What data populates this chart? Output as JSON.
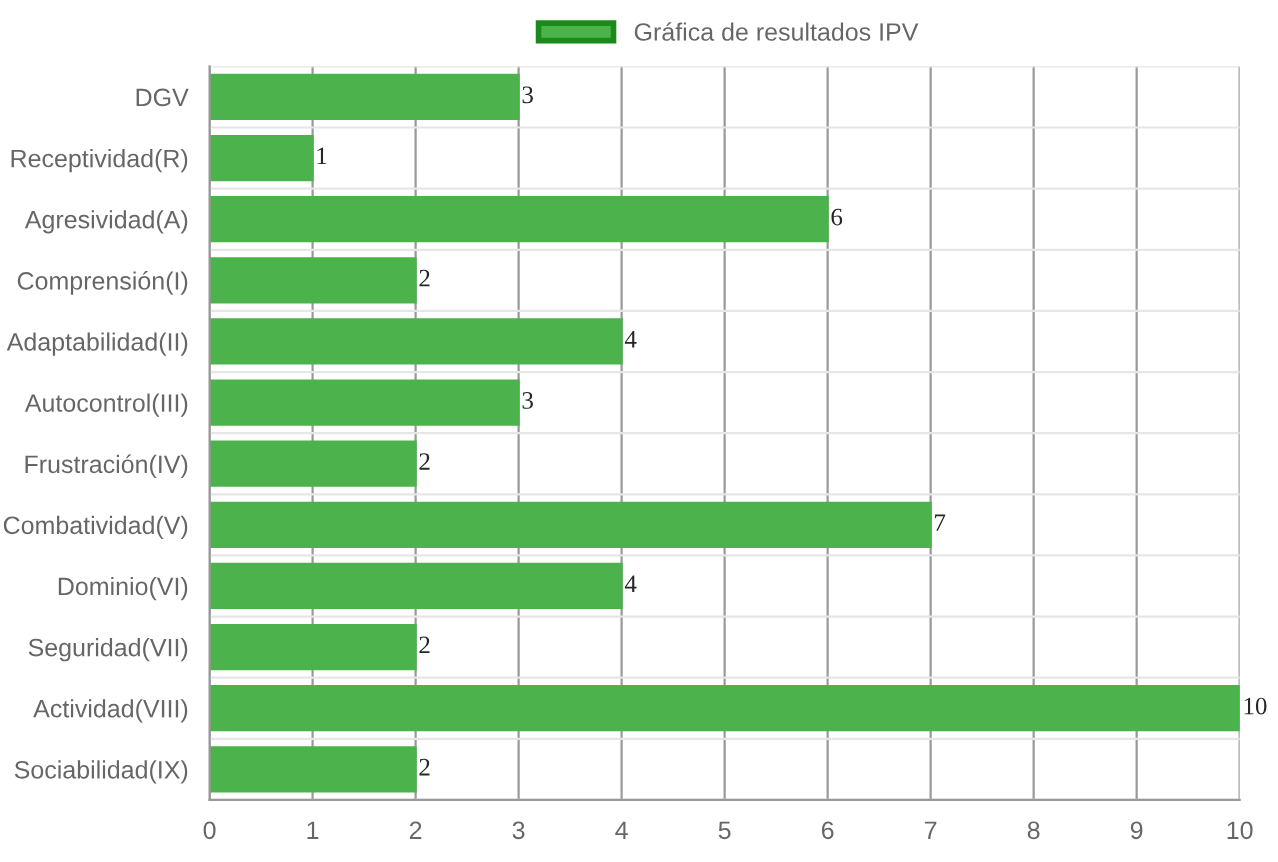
{
  "chart_data": {
    "type": "bar",
    "orientation": "horizontal",
    "categories": [
      "DGV",
      "Receptividad(R)",
      "Agresividad(A)",
      "Comprensión(I)",
      "Adaptabilidad(II)",
      "Autocontrol(III)",
      "Frustración(IV)",
      "Combatividad(V)",
      "Dominio(VI)",
      "Seguridad(VII)",
      "Actividad(VIII)",
      "Sociabilidad(IX)"
    ],
    "series": [
      {
        "name": "Gráfica de resultados IPV",
        "color": "#4cb34c",
        "values": [
          3,
          1,
          6,
          2,
          4,
          3,
          2,
          7,
          4,
          2,
          10,
          2
        ]
      }
    ],
    "xlim": [
      0,
      10
    ],
    "xticks": [
      0,
      1,
      2,
      3,
      4,
      5,
      6,
      7,
      8,
      9,
      10
    ],
    "grid": true,
    "legend": "top",
    "data_labels": true
  }
}
